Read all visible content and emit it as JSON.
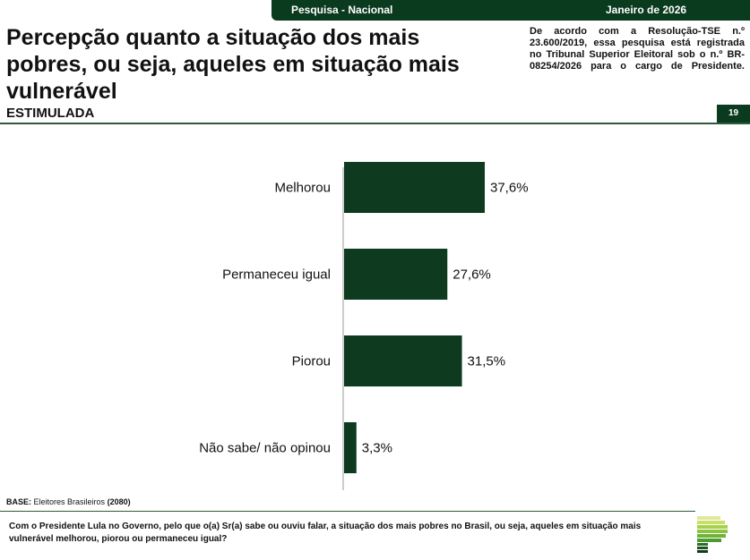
{
  "header": {
    "survey": "Pesquisa - Nacional",
    "date": "Janeiro de 2026",
    "title": "Percepção quanto a situação dos mais pobres, ou seja, aqueles em situação mais vulnerável",
    "subtitle": "ESTIMULADA",
    "registration": "De acordo com a Resolução-TSE n.º 23.600/2019, essa pesquisa está registrada no Tribunal Superior Eleitoral sob o n.º BR-08254/2026 para o cargo de Presidente.",
    "page": "19"
  },
  "colors": {
    "brand": "#0b3b1f",
    "bar": "#0e3b20"
  },
  "chart_data": {
    "type": "bar",
    "orientation": "horizontal",
    "categories": [
      "Melhorou",
      "Permaneceu igual",
      "Piorou",
      "Não sabe/ não opinou"
    ],
    "values": [
      37.6,
      27.6,
      31.5,
      3.3
    ],
    "labels": [
      "37,6%",
      "27,6%",
      "31,5%",
      "3,3%"
    ],
    "unit": "%",
    "grid": false
  },
  "footer": {
    "base_label": "BASE:",
    "base_text": "Eleitores Brasileiros",
    "base_count": "(2080)",
    "question": "Com o Presidente Lula no Governo, pelo que o(a) Sr(a) sabe ou ouviu falar, a situação dos mais pobres no Brasil, ou seja, aqueles em situação mais vulnerável melhorou, piorou ou permaneceu igual?"
  }
}
